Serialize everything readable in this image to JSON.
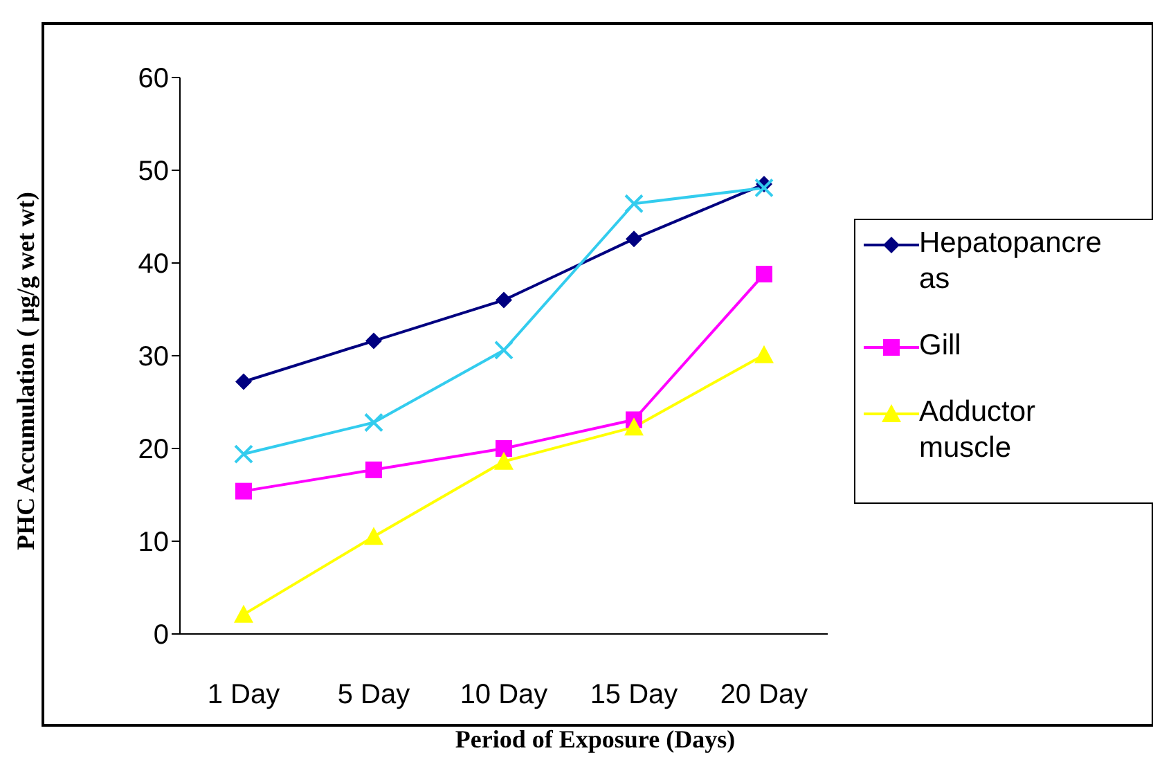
{
  "chart_data": {
    "type": "line",
    "xlabel": "Period of Exposure (Days)",
    "ylabel": "PHC Accumulation ( µg/g wet wt)",
    "categories": [
      "1 Day",
      "5 Day",
      "10 Day",
      "15 Day",
      "20 Day"
    ],
    "ylim": [
      0,
      60
    ],
    "yticks": [
      0,
      10,
      20,
      30,
      40,
      50,
      60
    ],
    "grid": false,
    "legend": "right",
    "series": [
      {
        "name": "Hepatopancreas",
        "color": "#000080",
        "marker": "diamond",
        "values": [
          27.2,
          31.6,
          36.0,
          42.6,
          48.5
        ]
      },
      {
        "name": "Gill",
        "color": "#ff00ff",
        "marker": "square",
        "values": [
          15.4,
          17.7,
          20.0,
          23.1,
          38.8
        ]
      },
      {
        "name": "Adductor muscle",
        "color": "#ffff00",
        "marker": "triangle",
        "values": [
          2.1,
          10.5,
          18.6,
          22.3,
          30.1
        ]
      },
      {
        "color": "#33ccee",
        "marker": "cross",
        "values": [
          19.4,
          22.8,
          30.6,
          46.4,
          48.1
        ]
      }
    ]
  }
}
